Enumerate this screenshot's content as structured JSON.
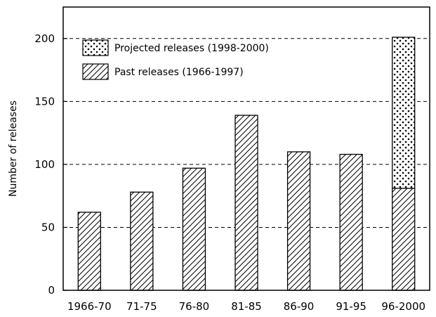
{
  "chart_data": {
    "type": "bar",
    "title": "",
    "xlabel": "",
    "ylabel": "Number of releases",
    "ylim": [
      0,
      225
    ],
    "yticks": [
      0,
      50,
      100,
      150,
      200
    ],
    "grid": "horizontal dashed",
    "legend_position": "top-left",
    "categories": [
      "1966-70",
      "71-75",
      "76-80",
      "81-85",
      "86-90",
      "91-95",
      "96-2000"
    ],
    "series": [
      {
        "name": "Past releases (1966-1997)",
        "pattern": "diagonal-hatch",
        "values": [
          62,
          78,
          97,
          139,
          110,
          108,
          81
        ]
      },
      {
        "name": "Projected releases (1998-2000)",
        "pattern": "dots",
        "values": [
          0,
          0,
          0,
          0,
          0,
          0,
          120
        ]
      }
    ],
    "stacked": true,
    "legend_order": [
      "Projected releases (1998-2000)",
      "Past releases (1966-1997)"
    ]
  },
  "colors": {
    "ink": "#000000",
    "background": "#ffffff",
    "grid": "#000000"
  }
}
